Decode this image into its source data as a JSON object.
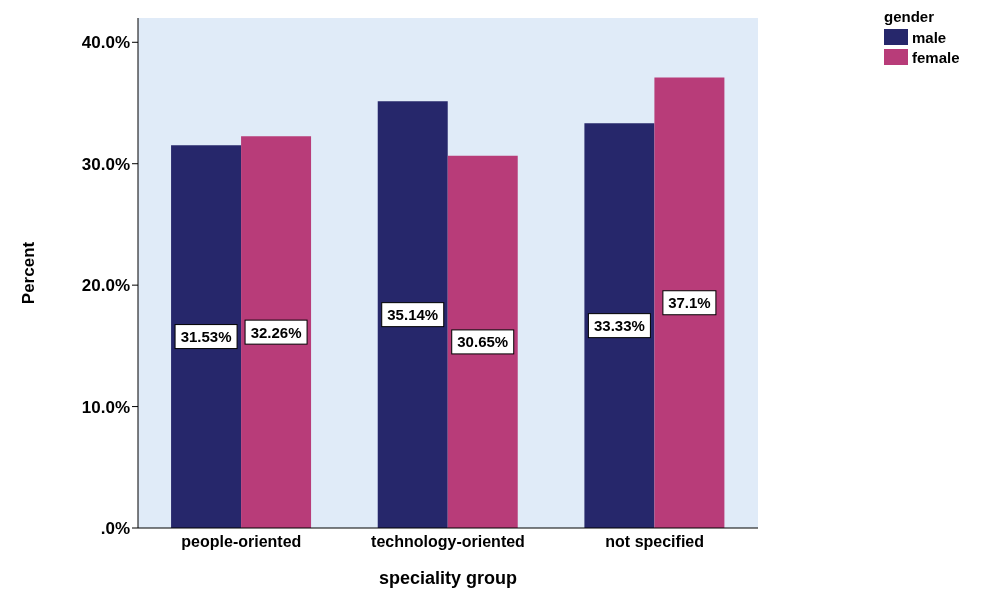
{
  "chart_data": {
    "type": "bar",
    "xlabel": "speciality group",
    "ylabel": "Percent",
    "legend_title": "gender",
    "legend": "top right",
    "categories": [
      "people-oriented",
      "technology-oriented",
      "not specified"
    ],
    "series": [
      {
        "name": "male",
        "color": "#26276b",
        "values": [
          31.53,
          35.14,
          33.33
        ],
        "value_labels": [
          "31.53%",
          "35.14%",
          "33.33%"
        ]
      },
      {
        "name": "female",
        "color": "#b83c79",
        "values": [
          32.26,
          30.65,
          37.1
        ],
        "value_labels": [
          "32.26%",
          "30.65%",
          "37.1%"
        ]
      }
    ],
    "ylim": [
      0,
      42
    ],
    "yticks": [
      {
        "value": 0,
        "label": ".0%"
      },
      {
        "value": 10,
        "label": "10.0%"
      },
      {
        "value": 20,
        "label": "20.0%"
      },
      {
        "value": 30,
        "label": "30.0%"
      },
      {
        "value": 40,
        "label": "40.0%"
      }
    ]
  }
}
